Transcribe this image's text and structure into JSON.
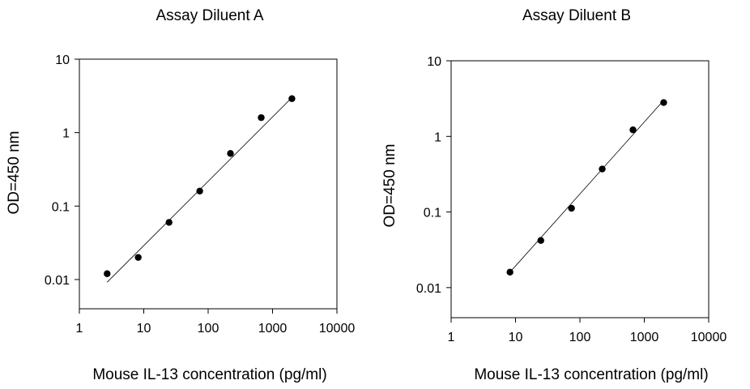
{
  "chart_data": [
    {
      "type": "scatter",
      "title": "Assay Diluent A",
      "xlabel": "Mouse IL-13 concentration (pg/ml)",
      "ylabel": "OD=450 nm",
      "xscale": "log",
      "yscale": "log",
      "xlim": [
        1,
        10000
      ],
      "ylim": [
        0.004,
        10
      ],
      "xticks": [
        1,
        10,
        100,
        1000,
        10000
      ],
      "xtick_labels": [
        "1",
        "10",
        "100",
        "1000",
        "10000"
      ],
      "yticks": [
        0.01,
        0.1,
        1,
        10
      ],
      "ytick_labels": [
        "0.01",
        "0.1",
        "1",
        "10"
      ],
      "grid": false,
      "series": [
        {
          "x": [
            2.7,
            8.2,
            24.7,
            74,
            222,
            667,
            2000
          ],
          "y": [
            0.012,
            0.02,
            0.06,
            0.16,
            0.52,
            1.6,
            2.9
          ]
        }
      ],
      "fit_line": {
        "x": [
          2.7,
          2000
        ],
        "y": [
          0.0092,
          3.0
        ]
      }
    },
    {
      "type": "scatter",
      "title": "Assay Diluent B",
      "xlabel": "Mouse IL-13 concentration (pg/ml)",
      "ylabel": "OD=450 nm",
      "xscale": "log",
      "yscale": "log",
      "xlim": [
        1,
        10000
      ],
      "ylim": [
        0.004,
        10
      ],
      "xticks": [
        1,
        10,
        100,
        1000,
        10000
      ],
      "xtick_labels": [
        "1",
        "10",
        "100",
        "1000",
        "10000"
      ],
      "yticks": [
        0.01,
        0.1,
        1,
        10
      ],
      "ytick_labels": [
        "0.01",
        "0.1",
        "1",
        "10"
      ],
      "grid": false,
      "series": [
        {
          "x": [
            8.2,
            24.7,
            74,
            222,
            667,
            2000
          ],
          "y": [
            0.016,
            0.042,
            0.112,
            0.37,
            1.22,
            2.8
          ]
        }
      ],
      "fit_line": {
        "x": [
          8.2,
          2000
        ],
        "y": [
          0.016,
          3.0
        ]
      }
    }
  ]
}
